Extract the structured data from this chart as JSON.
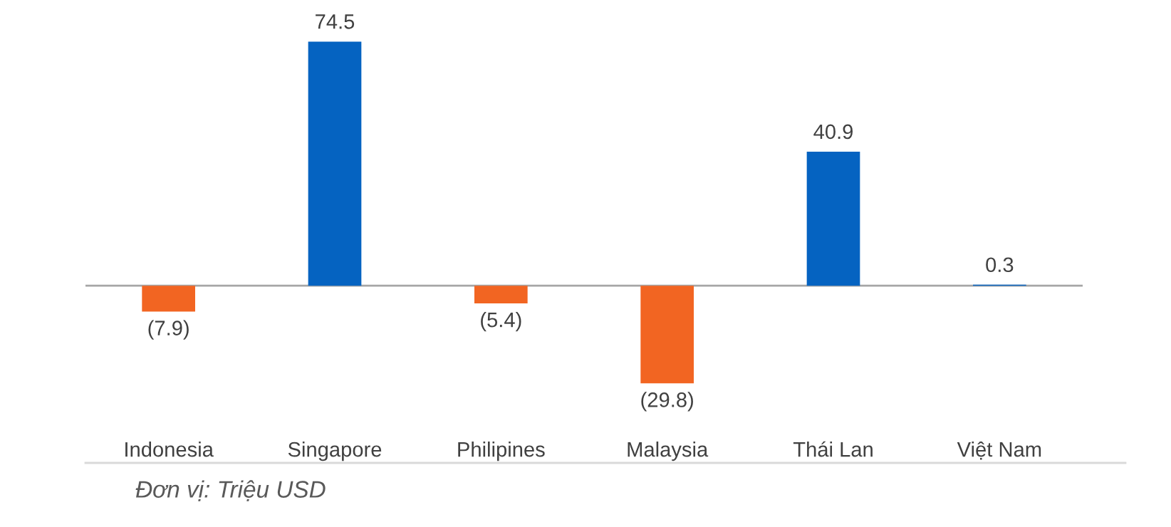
{
  "chart_data": {
    "type": "bar",
    "categories": [
      "Indonesia",
      "Singapore",
      "Philipines",
      "Malaysia",
      "Thái Lan",
      "Việt Nam"
    ],
    "values": [
      -7.9,
      74.5,
      -5.4,
      -29.8,
      40.9,
      0.3
    ],
    "colors": [
      "#f26522",
      "#0563c1",
      "#f26522",
      "#f26522",
      "#0563c1",
      "#0563c1"
    ],
    "value_labels": [
      "(7.9)",
      "74.5",
      "(5.4)",
      "(29.8)",
      "40.9",
      "0.3"
    ],
    "annotations": [
      "Đơn vị: Triệu USD"
    ],
    "grid": false,
    "legend": false
  }
}
